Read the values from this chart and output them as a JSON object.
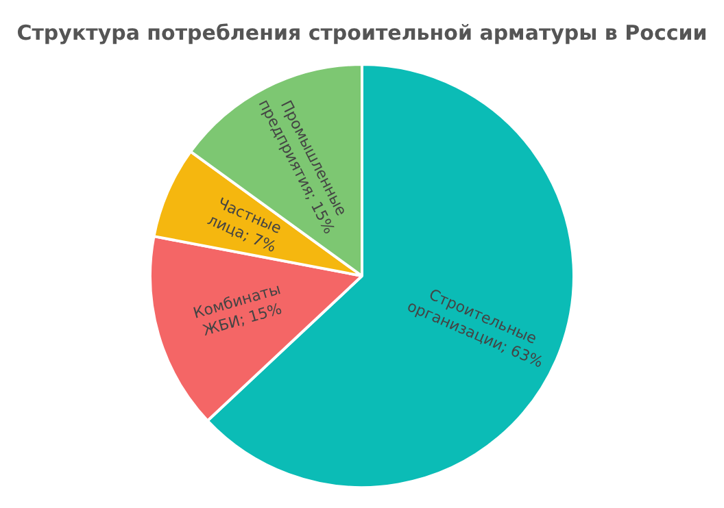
{
  "chart_data": {
    "type": "pie",
    "title": "Структура потребления строительной арматуры в России",
    "categories": [
      "Строительные организации",
      "Комбинаты ЖБИ",
      "Частные лица",
      "Промышленные предприятия"
    ],
    "value_labels": [
      "63%",
      "15%",
      "7%",
      "15%"
    ],
    "values": [
      63,
      15,
      7,
      15
    ],
    "colors": [
      "#0bbcb6",
      "#f46666",
      "#f5b70f",
      "#7dc772"
    ],
    "legend": false
  }
}
